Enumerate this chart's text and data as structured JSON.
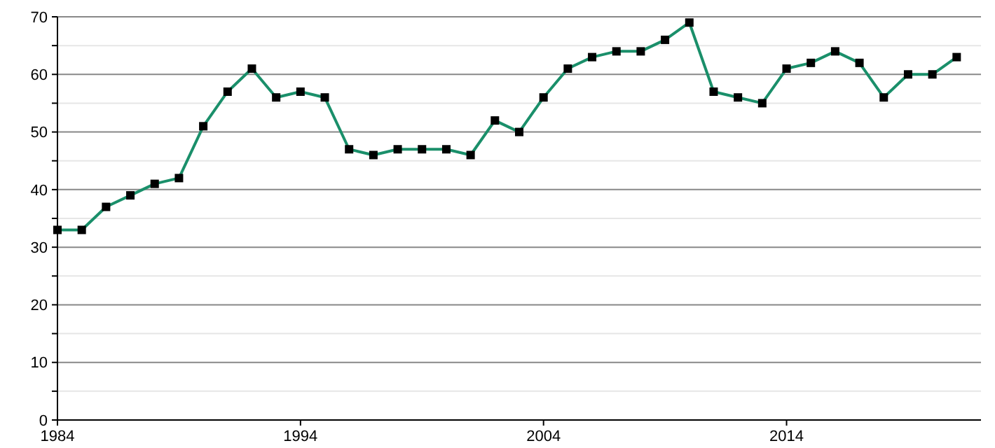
{
  "chart_data": {
    "type": "line",
    "x": [
      1984,
      1985,
      1986,
      1987,
      1988,
      1989,
      1990,
      1991,
      1992,
      1993,
      1994,
      1995,
      1996,
      1997,
      1998,
      1999,
      2000,
      2001,
      2002,
      2003,
      2004,
      2005,
      2006,
      2007,
      2008,
      2009,
      2010,
      2011,
      2012,
      2013,
      2014,
      2015,
      2016,
      2017,
      2018,
      2019,
      2020,
      2021
    ],
    "series": [
      {
        "color": "#1a8f6a",
        "values": [
          33,
          33,
          37,
          39,
          41,
          42,
          51,
          57,
          61,
          56,
          57,
          56,
          47,
          46,
          47,
          47,
          47,
          46,
          52,
          50,
          56,
          61,
          63,
          64,
          64,
          66,
          69,
          57,
          56,
          55,
          61,
          62,
          64,
          62,
          56,
          60,
          60,
          63
        ]
      }
    ],
    "xlim": [
      1984,
      2022
    ],
    "xticks": [
      1984,
      1994,
      2004,
      2014
    ],
    "ylim": [
      0,
      70
    ],
    "yticks": [
      0,
      {
        "value": 5,
        "label": null
      },
      10,
      {
        "value": 15,
        "label": null
      },
      20,
      {
        "value": 25,
        "label": null
      },
      30,
      {
        "value": 35,
        "label": null
      },
      40,
      {
        "value": 45,
        "label": null
      },
      50,
      {
        "value": 55,
        "label": null
      },
      60,
      {
        "value": 65,
        "label": null
      },
      70
    ],
    "grid": "y",
    "marker": "square",
    "line_style": "solid"
  }
}
